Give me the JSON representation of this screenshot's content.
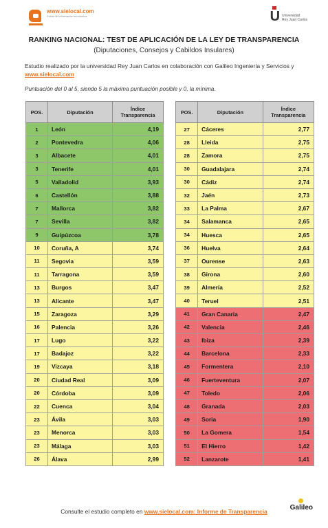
{
  "header": {
    "brand_url": "www.sielocal.com",
    "brand_sub": "Portal de Información económica",
    "uni_line1": "Universidad",
    "uni_line2": "Rey Juan Carlos",
    "title": "RANKING NACIONAL: TEST DE APLICACIÓN DE LA LEY DE TRANSPARENCIA",
    "subtitle": "(Diputaciones, Consejos y Cabildos Insulares)"
  },
  "intro": {
    "text": "Estudio realizado por la universidad Rey Juan Carlos en colaboración con Galileo Ingeniería y Servicios y ",
    "link": "www.sielocal.com",
    "note": "Puntuación del 0 al 5, siendo 5 la máxima puntuación posible y 0, la mínima."
  },
  "table_headers": {
    "pos": "POS.",
    "name": "Diputación",
    "value": "Índice Transparencia"
  },
  "colors": {
    "green": "#8dc76a",
    "yellow": "#fbf69f",
    "red": "#ee6f73",
    "accent": "#e8731c"
  },
  "left_rows": [
    {
      "pos": "1",
      "name": "León",
      "value": "4,19",
      "color": "green"
    },
    {
      "pos": "2",
      "name": "Pontevedra",
      "value": "4,06",
      "color": "green"
    },
    {
      "pos": "3",
      "name": "Albacete",
      "value": "4,01",
      "color": "green"
    },
    {
      "pos": "3",
      "name": "Tenerife",
      "value": "4,01",
      "color": "green"
    },
    {
      "pos": "5",
      "name": "Valladolid",
      "value": "3,93",
      "color": "green"
    },
    {
      "pos": "6",
      "name": "Castellón",
      "value": "3,88",
      "color": "green"
    },
    {
      "pos": "7",
      "name": "Mallorca",
      "value": "3,82",
      "color": "green"
    },
    {
      "pos": "7",
      "name": "Sevilla",
      "value": "3,82",
      "color": "green"
    },
    {
      "pos": "9",
      "name": "Guipúzcoa",
      "value": "3,78",
      "color": "green"
    },
    {
      "pos": "10",
      "name": "Coruña, A",
      "value": "3,74",
      "color": "yellow"
    },
    {
      "pos": "11",
      "name": "Segovia",
      "value": "3,59",
      "color": "yellow"
    },
    {
      "pos": "11",
      "name": "Tarragona",
      "value": "3,59",
      "color": "yellow"
    },
    {
      "pos": "13",
      "name": "Burgos",
      "value": "3,47",
      "color": "yellow"
    },
    {
      "pos": "13",
      "name": "Alicante",
      "value": "3,47",
      "color": "yellow"
    },
    {
      "pos": "15",
      "name": "Zaragoza",
      "value": "3,29",
      "color": "yellow"
    },
    {
      "pos": "16",
      "name": "Palencia",
      "value": "3,26",
      "color": "yellow"
    },
    {
      "pos": "17",
      "name": "Lugo",
      "value": "3,22",
      "color": "yellow"
    },
    {
      "pos": "17",
      "name": "Badajoz",
      "value": "3,22",
      "color": "yellow"
    },
    {
      "pos": "19",
      "name": "Vizcaya",
      "value": "3,18",
      "color": "yellow"
    },
    {
      "pos": "20",
      "name": "Ciudad Real",
      "value": "3,09",
      "color": "yellow"
    },
    {
      "pos": "20",
      "name": "Córdoba",
      "value": "3,09",
      "color": "yellow"
    },
    {
      "pos": "22",
      "name": "Cuenca",
      "value": "3,04",
      "color": "yellow"
    },
    {
      "pos": "23",
      "name": "Ávila",
      "value": "3,03",
      "color": "yellow"
    },
    {
      "pos": "23",
      "name": "Menorca",
      "value": "3,03",
      "color": "yellow"
    },
    {
      "pos": "23",
      "name": "Málaga",
      "value": "3,03",
      "color": "yellow"
    },
    {
      "pos": "26",
      "name": "Álava",
      "value": "2,99",
      "color": "yellow"
    }
  ],
  "right_rows": [
    {
      "pos": "27",
      "name": "Cáceres",
      "value": "2,77",
      "color": "yellow"
    },
    {
      "pos": "28",
      "name": "Lleida",
      "value": "2,75",
      "color": "yellow"
    },
    {
      "pos": "28",
      "name": "Zamora",
      "value": "2,75",
      "color": "yellow"
    },
    {
      "pos": "30",
      "name": "Guadalajara",
      "value": "2,74",
      "color": "yellow"
    },
    {
      "pos": "30",
      "name": "Cádiz",
      "value": "2,74",
      "color": "yellow"
    },
    {
      "pos": "32",
      "name": "Jaén",
      "value": "2,73",
      "color": "yellow"
    },
    {
      "pos": "33",
      "name": "La Palma",
      "value": "2,67",
      "color": "yellow"
    },
    {
      "pos": "34",
      "name": "Salamanca",
      "value": "2,65",
      "color": "yellow"
    },
    {
      "pos": "34",
      "name": "Huesca",
      "value": "2,65",
      "color": "yellow"
    },
    {
      "pos": "36",
      "name": "Huelva",
      "value": "2,64",
      "color": "yellow"
    },
    {
      "pos": "37",
      "name": "Ourense",
      "value": "2,63",
      "color": "yellow"
    },
    {
      "pos": "38",
      "name": "Girona",
      "value": "2,60",
      "color": "yellow"
    },
    {
      "pos": "39",
      "name": "Almería",
      "value": "2,52",
      "color": "yellow"
    },
    {
      "pos": "40",
      "name": "Teruel",
      "value": "2,51",
      "color": "yellow"
    },
    {
      "pos": "41",
      "name": "Gran Canaria",
      "value": "2,47",
      "color": "red"
    },
    {
      "pos": "42",
      "name": "Valencia",
      "value": "2,46",
      "color": "red"
    },
    {
      "pos": "43",
      "name": "Ibiza",
      "value": "2,39",
      "color": "red"
    },
    {
      "pos": "44",
      "name": "Barcelona",
      "value": "2,33",
      "color": "red"
    },
    {
      "pos": "45",
      "name": "Formentera",
      "value": "2,10",
      "color": "red"
    },
    {
      "pos": "46",
      "name": "Fuerteventura",
      "value": "2,07",
      "color": "red"
    },
    {
      "pos": "47",
      "name": "Toledo",
      "value": "2,06",
      "color": "red"
    },
    {
      "pos": "48",
      "name": "Granada",
      "value": "2,03",
      "color": "red"
    },
    {
      "pos": "49",
      "name": "Soria",
      "value": "1,90",
      "color": "red"
    },
    {
      "pos": "50",
      "name": "La Gomera",
      "value": "1,54",
      "color": "red"
    },
    {
      "pos": "51",
      "name": "El Hierro",
      "value": "1,42",
      "color": "red"
    },
    {
      "pos": "52",
      "name": "Lanzarote",
      "value": "1,41",
      "color": "red"
    }
  ],
  "footer": {
    "text": "Consulte el estudio completo en ",
    "link": "www.sielocal.com: Informe de Transparencia",
    "galileo": "Galileo"
  }
}
